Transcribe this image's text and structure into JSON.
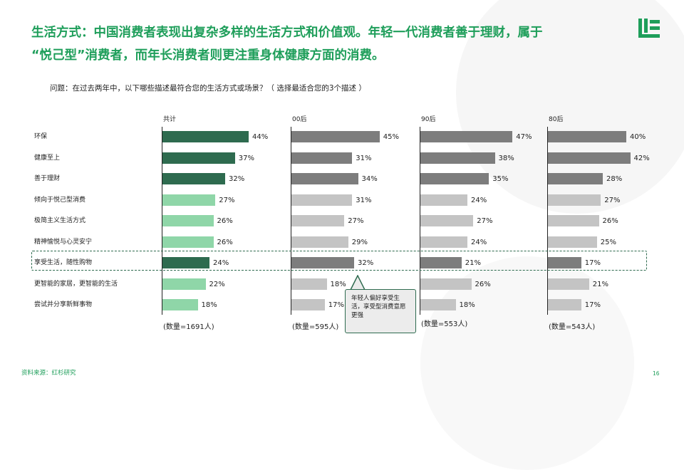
{
  "headline": {
    "line1": "生活方式：中国消费者表现出复杂多样的生活方式和价值观。年轻一代消费者善于理财，属于",
    "line2": "“悦己型”消费者，而年长消费者则更注重身体健康方面的消费。"
  },
  "question": "问题：在过去两年中，以下哪些描述最符合您的生活方式或场景？（ 选择最适合您的3个描述 ）",
  "colors": {
    "total_dark": "#2e6b4f",
    "total_light": "#8fd6a8",
    "group_dark": "#7d7d7d",
    "group_light": "#c4c4c4",
    "accent_green": "#1e9e5a"
  },
  "chart_data": {
    "type": "bar",
    "orientation": "horizontal",
    "categories": [
      "环保",
      "健康至上",
      "善于理财",
      "倾向于悦己型消费",
      "极简主义生活方式",
      "精神愉悦与心灵安宁",
      "享受生活，随性购物",
      "更智能的家居，更智能的生活",
      "尝试并分享新鲜事物"
    ],
    "series": [
      {
        "name": "共计",
        "count_label": "(数量=1691人)",
        "values": [
          44,
          37,
          32,
          27,
          26,
          26,
          24,
          22,
          18
        ],
        "dark": [
          true,
          true,
          true,
          false,
          false,
          false,
          true,
          false,
          false
        ]
      },
      {
        "name": "00后",
        "count_label": "(数量=595人)",
        "values": [
          45,
          31,
          34,
          31,
          27,
          29,
          32,
          18,
          17
        ],
        "dark": [
          true,
          true,
          true,
          false,
          false,
          false,
          true,
          false,
          false
        ]
      },
      {
        "name": "90后",
        "count_label": "(数量=553人)",
        "values": [
          47,
          38,
          35,
          24,
          27,
          24,
          21,
          26,
          18
        ],
        "dark": [
          true,
          true,
          true,
          false,
          false,
          false,
          true,
          false,
          false
        ]
      },
      {
        "name": "80后",
        "count_label": "(数量=543人)",
        "values": [
          40,
          42,
          28,
          27,
          26,
          25,
          17,
          21,
          17
        ],
        "dark": [
          true,
          true,
          true,
          false,
          false,
          false,
          true,
          false,
          false
        ]
      }
    ],
    "value_suffix": "%",
    "highlighted_category": "享受生活，随性购物",
    "annotation": "年轻人偏好享受生活，享受型消费意愿更强"
  },
  "source": "资料来源：红杉研究",
  "page_number": "16"
}
